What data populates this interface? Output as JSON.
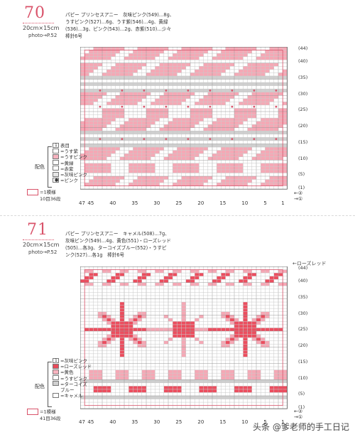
{
  "pattern70": {
    "number": "70",
    "size": "20cm×15cm",
    "photo": "photo→P.52",
    "materials": [
      "パピー プリンセスアニー　灰味ピンク(549)…8g、",
      "うすピンク(527)…6g、うす紫(546)…4g、黄緑",
      "(536)…3g、ピンク(543)…2g、赤紫(510)…少々",
      "棒針6号"
    ],
    "legend_title": "配色",
    "legend": [
      {
        "sym": "1",
        "label": "表目",
        "color": "#ffffff"
      },
      {
        "sym": "",
        "label": "=うす紫",
        "color": "#ffffff"
      },
      {
        "sym": "",
        "label": "=うすピンク",
        "color": "#f7b3bf"
      },
      {
        "sym": "",
        "label": "=黄緑",
        "color": "#ffffff"
      },
      {
        "sym": "",
        "label": "=赤紫",
        "color": "#ffffff"
      },
      {
        "sym": "",
        "label": "=灰味ピンク",
        "color": "#e6e6e6"
      },
      {
        "sym": "●",
        "label": "=ピンク",
        "color": "#ffffff"
      }
    ],
    "gauge": [
      "=1模様",
      "10目36段"
    ],
    "col_labels": [
      "47",
      "45",
      "40",
      "35",
      "30",
      "25",
      "20",
      "15",
      "10",
      "5",
      "1"
    ],
    "row_labels": [
      "44",
      "40",
      "35",
      "30",
      "25",
      "20",
      "15",
      "10",
      "5",
      "1"
    ],
    "arrows": [
      "②",
      "①"
    ]
  },
  "pattern71": {
    "number": "71",
    "size": "20cm×15cm",
    "photo": "photo→P.52",
    "materials": [
      "パピー プリンセスアニー　キャメル(508)…7g、",
      "灰味ピンク(549)…4g、黄色(551)・ローズレッド",
      "(505)…各3g、ターコイズブルー(552)・うすピ",
      "ンク(527)…各1g　棒針6号"
    ],
    "legend_title": "配色",
    "legend": [
      {
        "sym": "1",
        "label": "=灰味ピンク",
        "color": "#ffffff"
      },
      {
        "sym": "",
        "label": "=ローズレッド",
        "color": "#e94a5a"
      },
      {
        "sym": "",
        "label": "=黄色",
        "color": "#f7b3bf"
      },
      {
        "sym": "",
        "label": "=うすピンク",
        "color": "#ffffff"
      },
      {
        "sym": "",
        "label": "=ターコイズ",
        "color": "#d0d0d0"
      },
      {
        "sym": "",
        "label": "ブルー",
        "color": ""
      },
      {
        "sym": "",
        "label": "=キャメル",
        "color": "#ffffff"
      }
    ],
    "gauge": [
      "=1模様",
      "41目36段"
    ],
    "top_note": "←ローズレッド",
    "col_labels": [
      "47",
      "45",
      "40",
      "35",
      "30",
      "25",
      "20",
      "15",
      "10",
      "5",
      "1"
    ],
    "row_labels": [
      "44",
      "40",
      "35",
      "30",
      "25",
      "20",
      "15",
      "10",
      "5",
      "1"
    ],
    "arrows": [
      "②",
      "①"
    ]
  },
  "watermark": "头条 @爹老师的手工日记",
  "colors": {
    "pink": "#f5a8b5",
    "rose": "#ec4d5e",
    "grey": "#cfcfcf",
    "accent": "#d9536a"
  }
}
